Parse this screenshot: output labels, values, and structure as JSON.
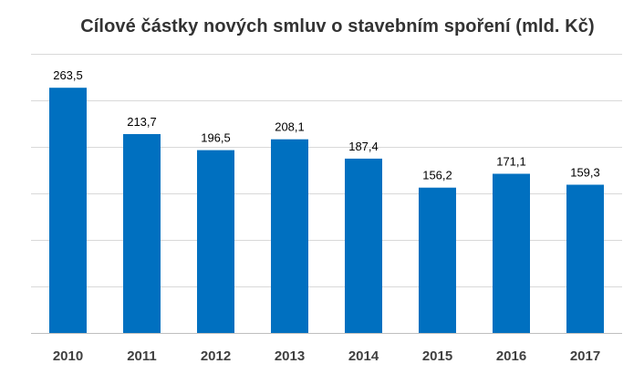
{
  "chart_data": {
    "type": "bar",
    "title": "Cílové částky nových smluv o stavebním spoření  (mld. Kč)",
    "xlabel": "",
    "ylabel": "",
    "categories": [
      "2010",
      "2011",
      "2012",
      "2013",
      "2014",
      "2015",
      "2016",
      "2017"
    ],
    "values": [
      263.5,
      213.7,
      196.5,
      208.1,
      187.4,
      156.2,
      171.1,
      159.3
    ],
    "value_labels": [
      "263,5",
      "213,7",
      "196,5",
      "208,1",
      "187,4",
      "156,2",
      "171,1",
      "159,3"
    ],
    "ylim": [
      0,
      300
    ],
    "gridlines": [
      0,
      50,
      100,
      150,
      200,
      250,
      300
    ],
    "grid": true,
    "legend": "none",
    "bar_color": "#0070c0"
  }
}
